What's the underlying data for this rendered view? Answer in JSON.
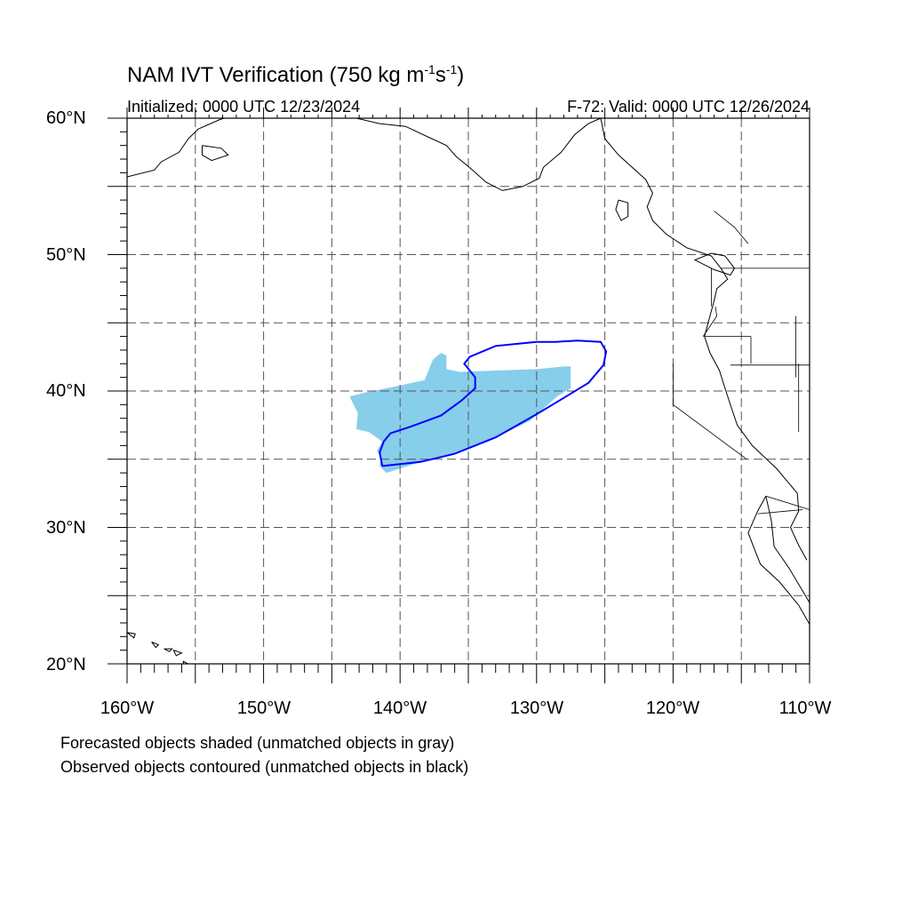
{
  "title": {
    "main": "NAM IVT Verification (750 kg m",
    "sup1": "-1",
    "mid": "s",
    "sup2": "-1",
    "end": ")"
  },
  "initialized": "Initialized: 0000 UTC 12/23/2024",
  "valid": "F-72: Valid: 0000 UTC 12/26/2024",
  "lat_labels": [
    "60°N",
    "50°N",
    "40°N",
    "30°N",
    "20°N"
  ],
  "lon_labels": [
    "160°W",
    "150°W",
    "140°W",
    "130°W",
    "120°W",
    "110°W"
  ],
  "notes": {
    "forecast": "Forecasted objects shaded (unmatched objects in gray)",
    "observed": "Observed objects contoured (unmatched objects in black)"
  },
  "colors": {
    "forecast_fill": "#87CEEB",
    "observed_contour": "#0000FF",
    "coastline": "#000000",
    "grid": "#555555"
  },
  "map": {
    "lon_range": [
      -160,
      -110
    ],
    "lat_range": [
      20,
      60
    ],
    "grid_spacing_deg": 5,
    "forecast_object": [
      [
        -143.7,
        39.6
      ],
      [
        -142.5,
        39.9
      ],
      [
        -140.5,
        40.3
      ],
      [
        -138.2,
        40.8
      ],
      [
        -137.6,
        42.3
      ],
      [
        -137.0,
        42.8
      ],
      [
        -136.6,
        42.6
      ],
      [
        -136.6,
        41.6
      ],
      [
        -135.6,
        41.4
      ],
      [
        -133.0,
        41.5
      ],
      [
        -130.0,
        41.6
      ],
      [
        -128.0,
        41.8
      ],
      [
        -127.5,
        41.8
      ],
      [
        -127.5,
        40.2
      ],
      [
        -128.5,
        39.6
      ],
      [
        -130.5,
        37.8
      ],
      [
        -133.0,
        36.6
      ],
      [
        -136.0,
        35.4
      ],
      [
        -138.5,
        34.8
      ],
      [
        -141.0,
        34.0
      ],
      [
        -141.5,
        34.5
      ],
      [
        -141.4,
        35.2
      ],
      [
        -141.7,
        35.6
      ],
      [
        -141.3,
        36.3
      ],
      [
        -142.3,
        37.0
      ],
      [
        -143.2,
        37.2
      ],
      [
        -143.1,
        38.4
      ],
      [
        -143.7,
        39.6
      ]
    ],
    "observed_object": [
      [
        -141.3,
        34.5
      ],
      [
        -138.5,
        34.8
      ],
      [
        -136.0,
        35.4
      ],
      [
        -133.0,
        36.6
      ],
      [
        -130.0,
        38.3
      ],
      [
        -128.0,
        39.5
      ],
      [
        -126.2,
        40.6
      ],
      [
        -125.1,
        41.9
      ],
      [
        -124.9,
        42.9
      ],
      [
        -125.3,
        43.6
      ],
      [
        -127.0,
        43.7
      ],
      [
        -128.6,
        43.6
      ],
      [
        -130.0,
        43.6
      ],
      [
        -131.0,
        43.5
      ],
      [
        -133.0,
        43.3
      ],
      [
        -134.9,
        42.5
      ],
      [
        -135.3,
        42.0
      ],
      [
        -134.5,
        41.0
      ],
      [
        -134.5,
        40.2
      ],
      [
        -135.5,
        39.3
      ],
      [
        -137.0,
        38.2
      ],
      [
        -139.2,
        37.4
      ],
      [
        -140.7,
        36.9
      ],
      [
        -141.2,
        36.3
      ],
      [
        -141.5,
        35.5
      ],
      [
        -141.3,
        34.5
      ]
    ],
    "coastline": [
      [
        -125.3,
        60.0
      ],
      [
        -125.0,
        58.5
      ],
      [
        -124.0,
        57.3
      ],
      [
        -122.0,
        55.5
      ],
      [
        -121.5,
        54.5
      ],
      [
        -121.9,
        53.5
      ],
      [
        -121.5,
        52.5
      ],
      [
        -120.5,
        51.5
      ],
      [
        -119.0,
        50.5
      ],
      [
        -117.2,
        49.9
      ],
      [
        -116.5,
        49.0
      ],
      [
        -116.0,
        48.2
      ],
      [
        -116.8,
        47.5
      ],
      [
        -117.0,
        46.6
      ],
      [
        -117.3,
        45.5
      ],
      [
        -117.7,
        44.0
      ],
      [
        -117.3,
        42.8
      ],
      [
        -116.6,
        41.5
      ],
      [
        -116.2,
        40.2
      ],
      [
        -115.8,
        39.0
      ],
      [
        -115.3,
        37.5
      ],
      [
        -114.2,
        36.0
      ],
      [
        -112.4,
        34.3
      ],
      [
        -110.9,
        32.5
      ],
      [
        -110.8,
        31.2
      ],
      [
        -111.4,
        30.0
      ],
      [
        -110.8,
        28.7
      ],
      [
        -110.2,
        27.6
      ]
    ],
    "vancouver_island": [
      [
        -117.2,
        50.1
      ],
      [
        -116.2,
        49.9
      ],
      [
        -115.5,
        49.0
      ],
      [
        -115.8,
        48.5
      ],
      [
        -117.0,
        48.9
      ],
      [
        -118.4,
        49.6
      ],
      [
        -117.2,
        50.1
      ]
    ],
    "haida_gwaii": [
      [
        -124.0,
        54.0
      ],
      [
        -123.3,
        53.8
      ],
      [
        -123.3,
        52.8
      ],
      [
        -123.8,
        52.5
      ],
      [
        -124.2,
        53.3
      ],
      [
        -124.0,
        54.0
      ]
    ],
    "baja": [
      [
        -113.2,
        32.3
      ],
      [
        -113.8,
        31.2
      ],
      [
        -114.5,
        29.6
      ],
      [
        -114.0,
        28.3
      ],
      [
        -113.6,
        27.3
      ],
      [
        -112.2,
        26.0
      ],
      [
        -110.8,
        24.3
      ],
      [
        -110.0,
        22.9
      ],
      [
        -109.6,
        23.8
      ],
      [
        -110.6,
        25.5
      ],
      [
        -111.5,
        27.0
      ],
      [
        -112.6,
        28.6
      ],
      [
        -112.8,
        30.5
      ],
      [
        -113.2,
        32.3
      ]
    ],
    "alaska_coast": [
      [
        -160.0,
        55.7
      ],
      [
        -158.0,
        56.2
      ],
      [
        -157.5,
        56.8
      ],
      [
        -156.2,
        57.5
      ],
      [
        -155.5,
        58.5
      ],
      [
        -154.8,
        59.2
      ],
      [
        -153.2,
        59.9
      ],
      [
        -152.9,
        60.0
      ]
    ],
    "alaska_panhandle": [
      [
        -143.2,
        60.0
      ],
      [
        -141.5,
        59.6
      ],
      [
        -139.6,
        59.4
      ],
      [
        -137.9,
        58.6
      ],
      [
        -136.6,
        58.0
      ],
      [
        -135.9,
        57.2
      ],
      [
        -134.7,
        56.2
      ],
      [
        -133.7,
        55.3
      ],
      [
        -132.5,
        54.7
      ],
      [
        -131.0,
        55.0
      ],
      [
        -129.8,
        55.6
      ],
      [
        -129.5,
        56.4
      ],
      [
        -128.2,
        57.5
      ],
      [
        -127.2,
        58.8
      ],
      [
        -126.2,
        59.6
      ],
      [
        -125.3,
        60.0
      ]
    ],
    "kodiak": [
      [
        -154.5,
        58.0
      ],
      [
        -153.1,
        57.8
      ],
      [
        -152.6,
        57.3
      ],
      [
        -153.8,
        56.9
      ],
      [
        -154.5,
        57.3
      ],
      [
        -154.5,
        58.0
      ]
    ],
    "hawaii": [
      [
        [
          -160.0,
          22.3
        ],
        [
          -159.4,
          22.2
        ],
        [
          -159.5,
          21.9
        ],
        [
          -160.0,
          22.3
        ]
      ],
      [
        [
          -158.2,
          21.6
        ],
        [
          -157.7,
          21.4
        ],
        [
          -157.9,
          21.2
        ],
        [
          -158.2,
          21.6
        ]
      ],
      [
        [
          -157.3,
          21.1
        ],
        [
          -156.7,
          21.1
        ],
        [
          -156.9,
          20.9
        ],
        [
          -157.3,
          21.1
        ]
      ],
      [
        [
          -156.6,
          21.0
        ],
        [
          -156.0,
          20.8
        ],
        [
          -156.4,
          20.6
        ],
        [
          -156.6,
          21.0
        ]
      ],
      [
        [
          -155.9,
          20.2
        ],
        [
          -155.0,
          19.7
        ],
        [
          -155.6,
          19.0
        ],
        [
          -155.9,
          20.2
        ]
      ]
    ],
    "borders": [
      [
        [
          -116.5,
          49.0
        ],
        [
          -110.0,
          49.0
        ]
      ],
      [
        [
          -117.7,
          44.0
        ],
        [
          -114.3,
          44.0
        ]
      ],
      [
        [
          -115.8,
          41.9
        ],
        [
          -110.0,
          41.9
        ]
      ],
      [
        [
          -120.0,
          42.0
        ],
        [
          -120.0,
          39.0
        ],
        [
          -114.6,
          35.0
        ]
      ],
      [
        [
          -114.3,
          44.0
        ],
        [
          -114.3,
          42.0
        ]
      ],
      [
        [
          -117.8,
          44.0
        ],
        [
          -116.8,
          45.5
        ],
        [
          -116.9,
          46.2
        ]
      ],
      [
        [
          -117.2,
          49.0
        ],
        [
          -117.2,
          46.2
        ]
      ],
      [
        [
          -113.2,
          32.3
        ],
        [
          -110.0,
          31.3
        ]
      ],
      [
        [
          -113.8,
          31.0
        ],
        [
          -110.5,
          31.3
        ]
      ],
      [
        [
          -110.8,
          37.0
        ],
        [
          -110.8,
          42.0
        ]
      ],
      [
        [
          -111.0,
          45.5
        ],
        [
          -111.0,
          41.0
        ]
      ],
      [
        [
          -117.0,
          53.2
        ],
        [
          -115.5,
          52.0
        ],
        [
          -114.5,
          50.8
        ]
      ]
    ]
  }
}
